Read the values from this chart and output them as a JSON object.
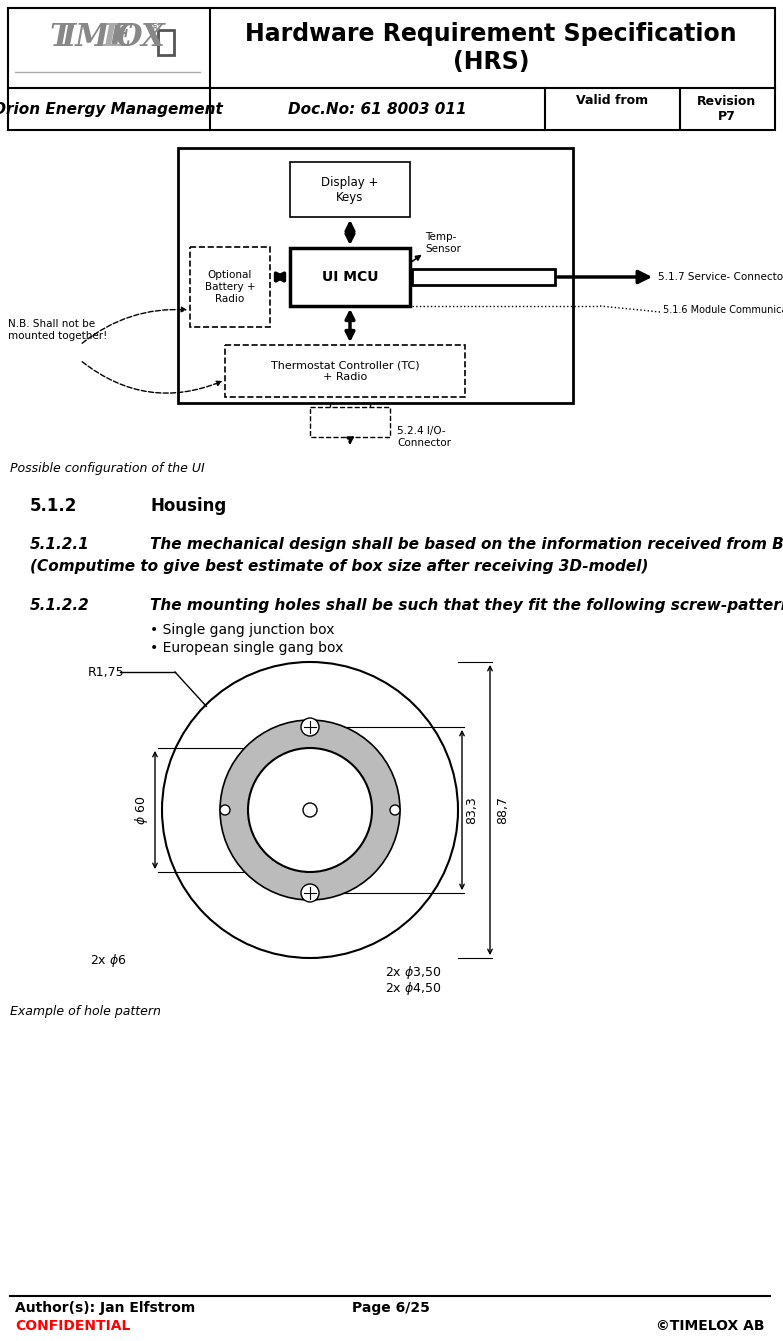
{
  "title": "Hardware Requirement Specification\n(HRS)",
  "company": "Orion Energy Management",
  "docno": "Doc.No: 61 8003 011",
  "valid_from": "Valid from",
  "revision": "Revision\nP7",
  "author": "Author(s): Jan Elfstrom",
  "page": "Page 6/25",
  "confidential": "CONFIDENTIAL",
  "copyright": "©TIMELOX AB",
  "caption1": "Possible configuration of the UI",
  "caption2": "Example of hole pattern",
  "section_512": "5.1.2",
  "section_512_title": "Housing",
  "section_5121": "5.1.2.1",
  "section_5121_text1": "The mechanical design shall be based on the information received from Bressler.",
  "section_5121_text2": "(Computime to give best estimate of box size after receiving 3D-model)",
  "section_5122": "5.1.2.2",
  "section_5122_text": "The mounting holes shall be such that they fit the following screw-patterns:",
  "bullet1": "Single gang junction box",
  "bullet2": "European single gang box",
  "bg_color": "#ffffff",
  "red_color": "#ff0000"
}
